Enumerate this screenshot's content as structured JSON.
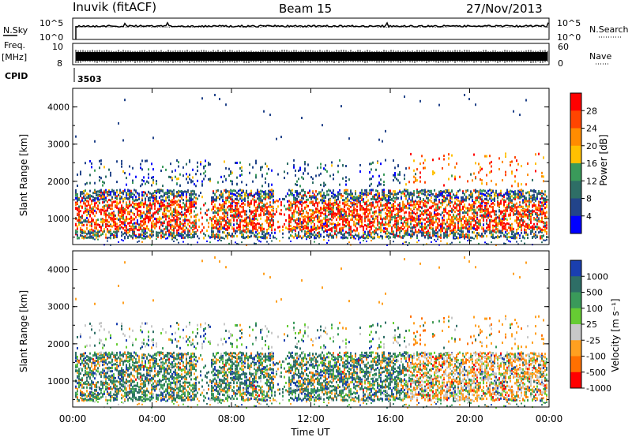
{
  "header": {
    "station": "Inuvik (fitACF)",
    "beam": "Beam 15",
    "date": "27/Nov/2013"
  },
  "strip_panels": {
    "left_label_top": "N.Sky",
    "left_label_freq": "Freq.",
    "left_label_freq_unit": "[MHz]",
    "left_label_cpid": "CPID",
    "cpid_value": "3503",
    "right_label_search": "N.Search",
    "right_label_nave": "Nave",
    "noise_ticks": [
      "10^5",
      "10^0"
    ],
    "freq_ticks": [
      "10",
      "8"
    ],
    "nave_ticks": [
      "60",
      "0"
    ]
  },
  "x_axis": {
    "title": "Time UT",
    "ticks": [
      "00:00",
      "04:00",
      "08:00",
      "12:00",
      "16:00",
      "20:00",
      "00:00"
    ]
  },
  "colors": {
    "power_scale": [
      "#0000ff",
      "#22448a",
      "#2e6e66",
      "#3a9a5a",
      "#ffc000",
      "#ff8c00",
      "#ff4500",
      "#ff0000"
    ],
    "velocity_scale": [
      "#1a3fb0",
      "#2e6e66",
      "#3a9a5a",
      "#66cc33",
      "#c8c8c8",
      "#ffa020",
      "#ff7000",
      "#ff0000"
    ]
  },
  "chart_data": [
    {
      "type": "heatmap",
      "name": "power",
      "ylabel": "Slant Range [km]",
      "yticks": [
        "1000",
        "2000",
        "3000",
        "4000"
      ],
      "ylim": [
        300,
        4500
      ],
      "colorbar_label": "Power [dB]",
      "colorbar_ticks": [
        "4",
        "8",
        "12",
        "16",
        "20",
        "24",
        "28"
      ]
    },
    {
      "type": "heatmap",
      "name": "velocity",
      "ylabel": "Slant Range [km]",
      "yticks": [
        "1000",
        "2000",
        "3000",
        "4000"
      ],
      "ylim": [
        300,
        4500
      ],
      "colorbar_label": "Velocity [m s⁻¹]",
      "colorbar_ticks": [
        "1000",
        "500",
        "100",
        "25",
        "-25",
        "-100",
        "-500",
        "-1000"
      ]
    }
  ]
}
